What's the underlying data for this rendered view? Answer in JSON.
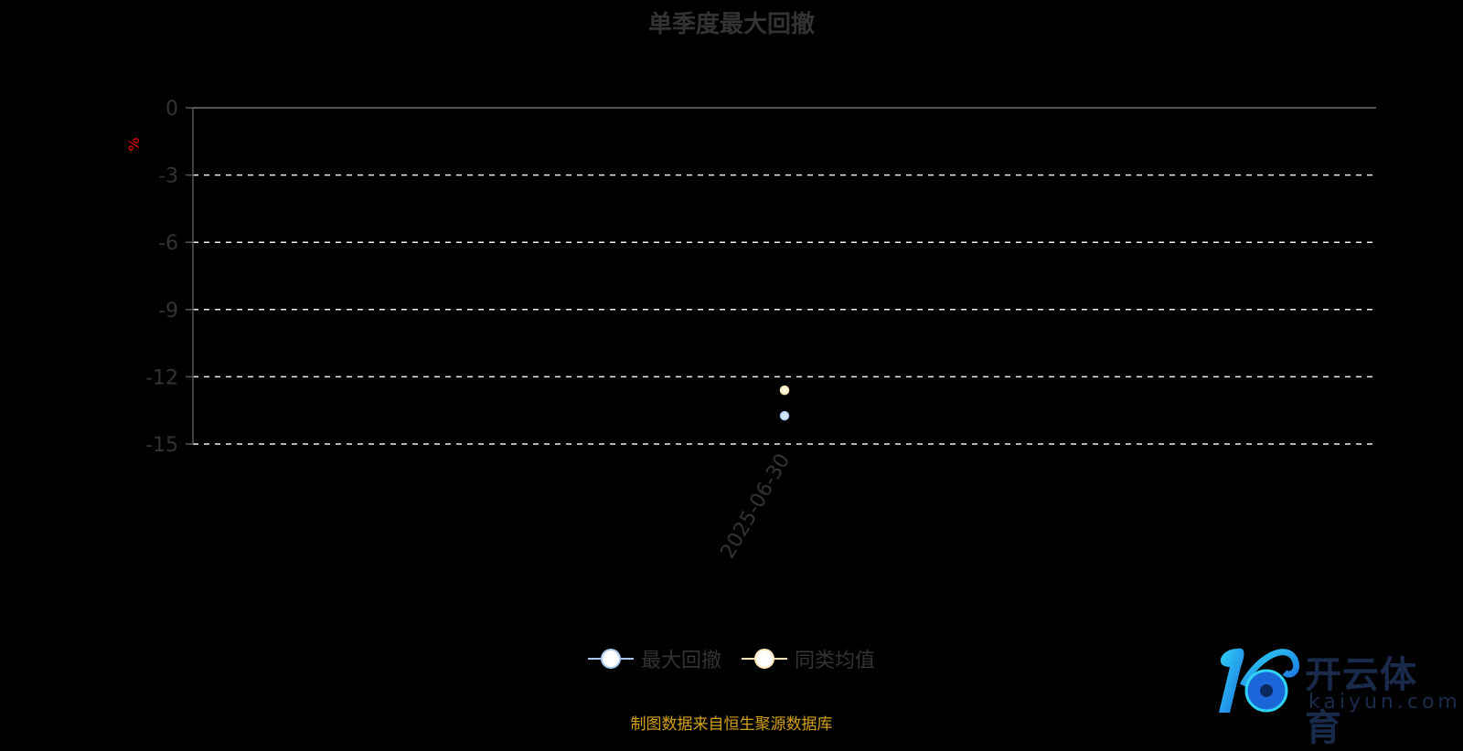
{
  "chart_data": {
    "type": "scatter",
    "title": "单季度最大回撤",
    "ylabel": "%",
    "categories": [
      "2025-06-30"
    ],
    "ylim": [
      -15,
      0
    ],
    "yticks": [
      0,
      -3,
      -6,
      -9,
      -12,
      -15
    ],
    "grid": true,
    "legend_position": "bottom",
    "series": [
      {
        "name": "最大回撤",
        "values": [
          -13.74
        ],
        "color": "#a9c8f0"
      },
      {
        "name": "同类均值",
        "values": [
          -12.6
        ],
        "color": "#fde7b5"
      }
    ]
  },
  "source_note": "制图数据来自恒生聚源数据库",
  "watermark": {
    "cn": "开云体育",
    "en": "kaiyun.com"
  }
}
